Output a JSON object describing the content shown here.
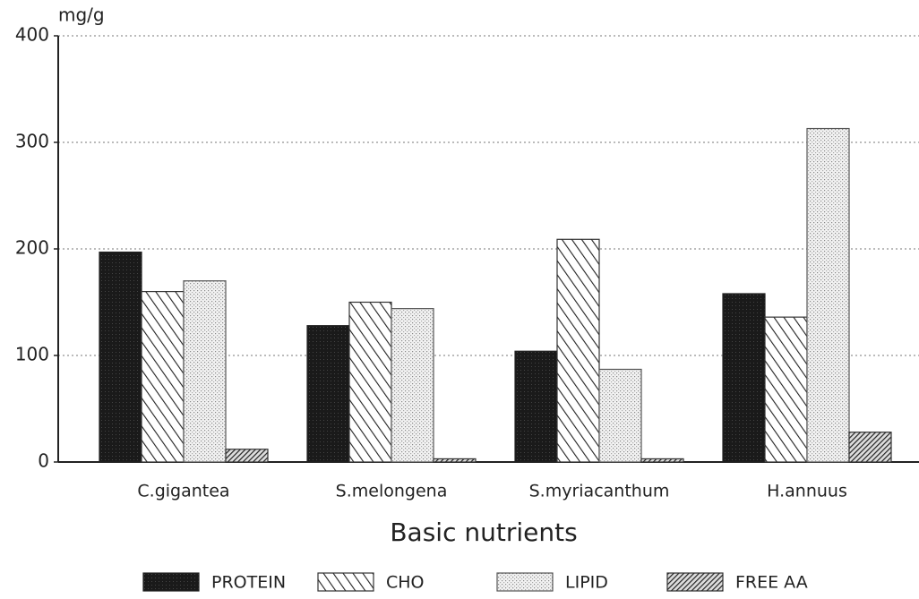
{
  "chart_data": {
    "type": "bar",
    "ylabel": "mg/g",
    "xlabel": "Basic nutrients",
    "categories": [
      "C.gigantea",
      "S.melongena",
      "S.myriacanthum",
      "H.annuus"
    ],
    "series": [
      {
        "name": "PROTEIN",
        "color": "#222222",
        "values": [
          197,
          128,
          104,
          158
        ]
      },
      {
        "name": "CHO",
        "color": "#333333",
        "values": [
          160,
          150,
          209,
          136
        ]
      },
      {
        "name": "LIPID",
        "color": "#555555",
        "values": [
          170,
          144,
          87,
          313
        ]
      },
      {
        "name": "FREE AA",
        "color": "#333333",
        "values": [
          12,
          3,
          3,
          28
        ]
      }
    ],
    "ylim": [
      0,
      400
    ],
    "yticks": [
      0,
      100,
      200,
      300,
      400
    ],
    "grid": true
  }
}
